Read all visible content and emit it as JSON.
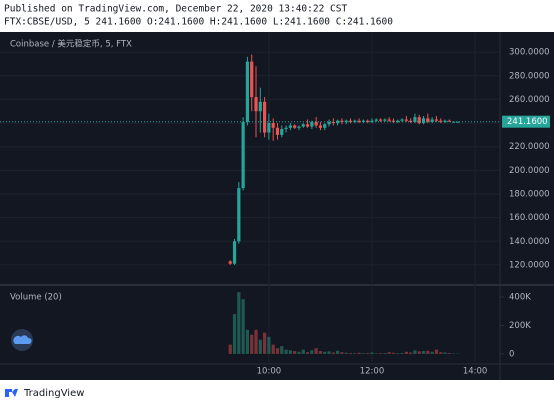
{
  "header": {
    "published": "Published on TradingView.com, December 22, 2020 13:40:22 CST",
    "symbol_line": "FTX:CBSE/USD, 5 241.1600 O:241.1600 H:241.1600 L:241.1600 C:241.1600"
  },
  "footer": {
    "brand": "TradingView"
  },
  "chart_data": [
    {
      "type": "candlestick",
      "title": "Coinbase / 美元稳定币, 5, FTX",
      "up_color": "#26a69a",
      "down_color": "#ef5350",
      "grid": true,
      "x": [
        555,
        560,
        565,
        570,
        575,
        580,
        585,
        590,
        595,
        600,
        605,
        610,
        615,
        620,
        625,
        630,
        635,
        640,
        645,
        650,
        655,
        660,
        665,
        670,
        675,
        680,
        685,
        690,
        695,
        700,
        705,
        710,
        715,
        720,
        725,
        730,
        735,
        740,
        745,
        750,
        755,
        760,
        765,
        770,
        775,
        780,
        785,
        790,
        795,
        800,
        805,
        810,
        815,
        820
      ],
      "open": [
        123,
        121,
        140,
        185,
        241,
        292,
        262,
        250,
        258,
        232,
        240,
        236,
        230,
        235,
        236,
        238,
        236,
        237,
        239,
        237,
        241,
        238,
        236,
        239,
        241,
        240,
        242,
        241,
        242,
        241,
        242,
        241,
        242,
        241,
        242,
        243,
        242,
        243,
        242,
        241,
        242,
        243,
        242,
        241,
        245,
        240,
        244,
        241,
        243,
        242,
        241,
        242,
        241.16,
        241.16
      ],
      "high": [
        124,
        142,
        190,
        245,
        296,
        298,
        288,
        270,
        262,
        248,
        244,
        240,
        238,
        238,
        240,
        239,
        238,
        240,
        243,
        242,
        245,
        241,
        240,
        243,
        244,
        243,
        244,
        243,
        244,
        243,
        244,
        243,
        243,
        244,
        244,
        244,
        244,
        245,
        244,
        243,
        244,
        246,
        244,
        248,
        247,
        246,
        248,
        245,
        246,
        244,
        243,
        243,
        241.5,
        241.3
      ],
      "low": [
        120,
        120,
        138,
        183,
        238,
        250,
        228,
        232,
        228,
        226,
        225,
        226,
        228,
        232,
        234,
        235,
        234,
        236,
        236,
        235,
        236,
        234,
        234,
        237,
        238,
        238,
        239,
        239,
        240,
        240,
        240,
        240,
        240,
        240,
        241,
        241,
        241,
        241,
        240,
        240,
        241,
        241,
        240,
        240,
        239,
        239,
        240,
        240,
        241,
        240,
        240,
        241,
        241,
        241
      ],
      "close": [
        121,
        140,
        185,
        241,
        292,
        262,
        250,
        258,
        232,
        240,
        236,
        230,
        235,
        236,
        238,
        236,
        237,
        239,
        237,
        241,
        238,
        236,
        239,
        241,
        240,
        242,
        241,
        242,
        241,
        242,
        241,
        242,
        241,
        242,
        243,
        242,
        243,
        242,
        241,
        242,
        243,
        242,
        241,
        245,
        240,
        244,
        241,
        243,
        242,
        241,
        242,
        241.16,
        241.16,
        241.16
      ],
      "last_price": 241.16,
      "last_price_label": "241.1600",
      "xlim": [
        287,
        869
      ],
      "xticks": [
        {
          "value": 600,
          "label": "10:00"
        },
        {
          "value": 720,
          "label": "12:00"
        },
        {
          "value": 840,
          "label": "14:00"
        }
      ],
      "ylim": [
        104.7,
        316.2
      ],
      "yticks": [
        {
          "value": 120,
          "label": "120.0000"
        },
        {
          "value": 140,
          "label": "140.0000"
        },
        {
          "value": 160,
          "label": "160.0000"
        },
        {
          "value": 180,
          "label": "180.0000"
        },
        {
          "value": 200,
          "label": "200.0000"
        },
        {
          "value": 220,
          "label": "220.0000"
        },
        {
          "value": 240,
          "label": "240.0000"
        },
        {
          "value": 260,
          "label": "260.0000"
        },
        {
          "value": 280,
          "label": "280.0000"
        },
        {
          "value": 300,
          "label": "300.0000"
        }
      ]
    },
    {
      "type": "bar",
      "title": "Volume (20)",
      "up_color": "#1f5a52",
      "down_color": "#7a3236",
      "values": [
        65000,
        280000,
        435000,
        385000,
        170000,
        135000,
        170000,
        100000,
        150000,
        120000,
        65000,
        40000,
        55000,
        30000,
        25000,
        20000,
        15000,
        30000,
        12000,
        25000,
        40000,
        20000,
        15000,
        18000,
        10000,
        22000,
        12000,
        8000,
        6000,
        5000,
        8000,
        5000,
        6000,
        10000,
        4000,
        5000,
        6000,
        12000,
        8000,
        5000,
        6000,
        15000,
        10000,
        25000,
        18000,
        20000,
        22000,
        15000,
        30000,
        12000,
        10000,
        6000,
        3000,
        2000
      ],
      "ylim": [
        -57000,
        464000
      ],
      "yticks": [
        0,
        {
          "value": 200000,
          "label": "200K"
        },
        {
          "value": 400000,
          "label": "400K"
        }
      ]
    }
  ]
}
